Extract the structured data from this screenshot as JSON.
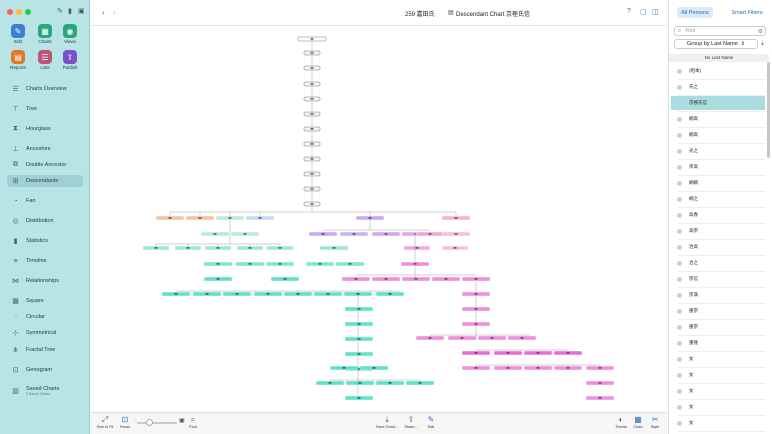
{
  "toolbar": {
    "tools": [
      {
        "label": "Edit",
        "icon": "pencil-icon",
        "color": "#3b7fd0"
      },
      {
        "label": "Charts",
        "icon": "chart-icon",
        "color": "#2aa77a"
      },
      {
        "label": "Views",
        "icon": "eye-icon",
        "color": "#2aa77a"
      },
      {
        "label": "Reports",
        "icon": "document-icon",
        "color": "#e07a2a"
      },
      {
        "label": "Lists",
        "icon": "list-icon",
        "color": "#c0557a"
      },
      {
        "label": "Publish",
        "icon": "upload-icon",
        "color": "#7a4fc9"
      }
    ]
  },
  "sidebar": {
    "items": [
      {
        "label": "Charts Overview",
        "icon": "charts-overview-icon"
      },
      {
        "label": "Tree",
        "icon": "tree-icon"
      },
      {
        "label": "Hourglass",
        "icon": "hourglass-icon"
      },
      {
        "label": "Ancestors",
        "icon": "ancestors-icon"
      },
      {
        "label": "Double Ancestor",
        "icon": "double-ancestor-icon"
      },
      {
        "label": "Descendants",
        "icon": "descendants-icon",
        "selected": true
      },
      {
        "label": "Fan",
        "icon": "fan-icon"
      },
      {
        "label": "Distribution",
        "icon": "distribution-icon"
      },
      {
        "label": "Statistics",
        "icon": "statistics-icon"
      },
      {
        "label": "Timeline",
        "icon": "timeline-icon"
      },
      {
        "label": "Relationships",
        "icon": "relationships-icon"
      },
      {
        "label": "Square",
        "icon": "square-icon"
      },
      {
        "label": "Circular",
        "icon": "circular-icon"
      },
      {
        "label": "Symmetrical",
        "icon": "symmetrical-icon"
      },
      {
        "label": "Fractal Tree",
        "icon": "fractal-tree-icon"
      },
      {
        "label": "Genogram",
        "icon": "genogram-icon"
      },
      {
        "label": "Saved Charts",
        "sublabel": "0 Saved Charts",
        "icon": "saved-charts-icon"
      }
    ]
  },
  "header": {
    "person_count": "259 嘉田氏",
    "chart_title": "Descendant Chart 京極氏信"
  },
  "bottom_toolbar": {
    "left": [
      {
        "label": "Size to Fit",
        "icon": "size-to-fit-icon"
      },
      {
        "label": "Focus",
        "icon": "focus-icon"
      },
      {
        "label": "Find",
        "icon": "find-icon"
      }
    ],
    "right": [
      {
        "label": "Save Chart...",
        "icon": "save-chart-icon"
      },
      {
        "label": "Share...",
        "icon": "share-icon"
      },
      {
        "label": "Edit",
        "icon": "edit-icon"
      },
      {
        "label": "Theme",
        "icon": "theme-icon"
      },
      {
        "label": "Chart",
        "icon": "chart-settings-icon"
      },
      {
        "label": "Style",
        "icon": "style-icon"
      }
    ]
  },
  "right_panel": {
    "tabs": [
      "All Persons",
      "Smart Filters"
    ],
    "search_placeholder": "Find",
    "group_by": "Group by Last Name",
    "section_header": "No Last Name",
    "persons": [
      "(昭本)",
      "氏之",
      "京極氏信",
      "綱高",
      "綱高",
      "光之",
      "孝高",
      "綱綱",
      "綱之",
      "高春",
      "高宗",
      "治高",
      "治之",
      "宗信",
      "宗満",
      "重宗",
      "重宗",
      "重隆",
      "女",
      "女",
      "女",
      "女",
      "女"
    ],
    "selected_index": 2
  },
  "colors": {
    "sidebar_bg": "#b9e4e6",
    "accent": "#3a7aa8",
    "selection": "#a9dde0",
    "node_teal": "#5fe3c6",
    "node_pink": "#f08fdc",
    "node_purple": "#c9a8f2",
    "node_orange": "#f7c39e"
  }
}
